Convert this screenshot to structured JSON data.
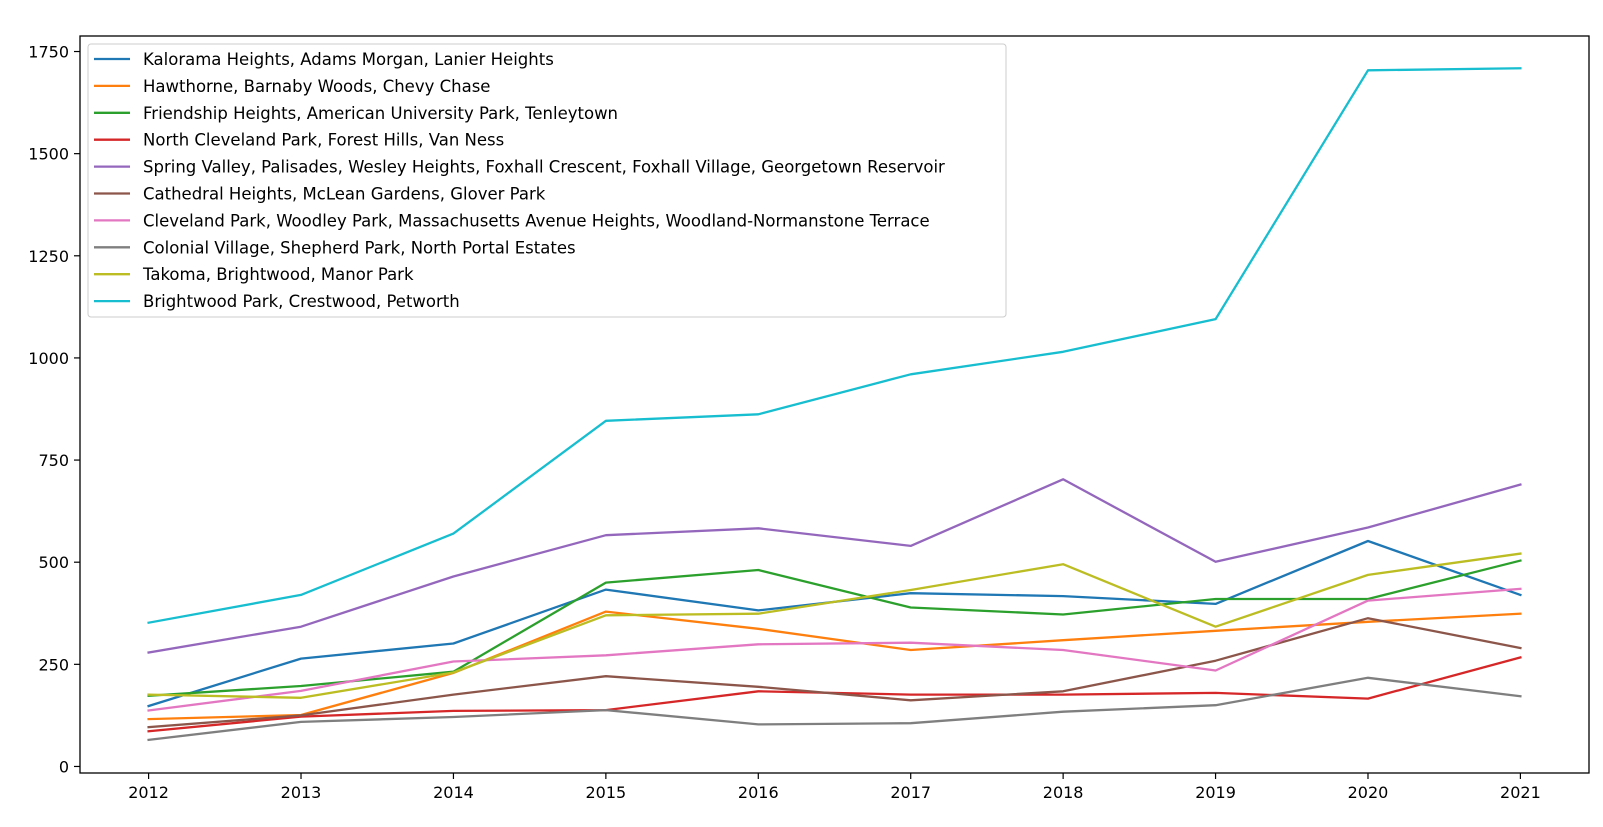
{
  "chart_data": {
    "type": "line",
    "title": "",
    "xlabel": "",
    "ylabel": "",
    "x": [
      2012,
      2013,
      2014,
      2015,
      2016,
      2017,
      2018,
      2019,
      2020,
      2021
    ],
    "xlim": [
      2011.55,
      2021.45
    ],
    "ylim": [
      -16,
      1788
    ],
    "yticks": [
      0,
      250,
      500,
      750,
      1000,
      1250,
      1500,
      1750
    ],
    "grid": false,
    "legend_position": "top-left",
    "series": [
      {
        "name": "Kalorama Heights, Adams Morgan, Lanier Heights",
        "color": "#1f77b4",
        "values": [
          148,
          264,
          301,
          433,
          382,
          424,
          417,
          398,
          552,
          420
        ]
      },
      {
        "name": "Hawthorne, Barnaby Woods, Chevy Chase",
        "color": "#ff7f0e",
        "values": [
          116,
          126,
          229,
          379,
          337,
          285,
          309,
          332,
          354,
          374
        ]
      },
      {
        "name": "Friendship Heights, American University Park, Tenleytown",
        "color": "#2ca02c",
        "values": [
          173,
          197,
          232,
          450,
          481,
          389,
          372,
          410,
          410,
          504
        ]
      },
      {
        "name": "North Cleveland Park, Forest Hills, Van Ness",
        "color": "#d62728",
        "values": [
          86,
          122,
          136,
          138,
          184,
          176,
          176,
          180,
          166,
          267
        ]
      },
      {
        "name": "Spring Valley, Palisades, Wesley Heights, Foxhall Crescent, Foxhall Village, Georgetown Reservoir",
        "color": "#9467bd",
        "values": [
          279,
          342,
          465,
          566,
          583,
          540,
          703,
          501,
          585,
          690
        ]
      },
      {
        "name": "Cathedral Heights, McLean Gardens, Glover Park",
        "color": "#8c564b",
        "values": [
          96,
          125,
          176,
          221,
          195,
          162,
          184,
          259,
          363,
          290
        ]
      },
      {
        "name": "Cleveland Park, Woodley Park, Massachusetts Avenue Heights, Woodland-Normanstone Terrace",
        "color": "#e377c2",
        "values": [
          137,
          185,
          257,
          272,
          299,
          303,
          285,
          235,
          406,
          435
        ]
      },
      {
        "name": "Colonial Village, Shepherd Park, North Portal Estates",
        "color": "#7f7f7f",
        "values": [
          65,
          109,
          121,
          138,
          103,
          106,
          134,
          150,
          217,
          172
        ]
      },
      {
        "name": "Takoma, Brightwood, Manor Park",
        "color": "#bcbd22",
        "values": [
          176,
          168,
          230,
          370,
          374,
          432,
          495,
          342,
          469,
          521
        ]
      },
      {
        "name": "Brightwood Park, Crestwood, Petworth",
        "color": "#17becf",
        "values": [
          352,
          420,
          570,
          846,
          862,
          960,
          1015,
          1095,
          1704,
          1709
        ]
      }
    ]
  }
}
